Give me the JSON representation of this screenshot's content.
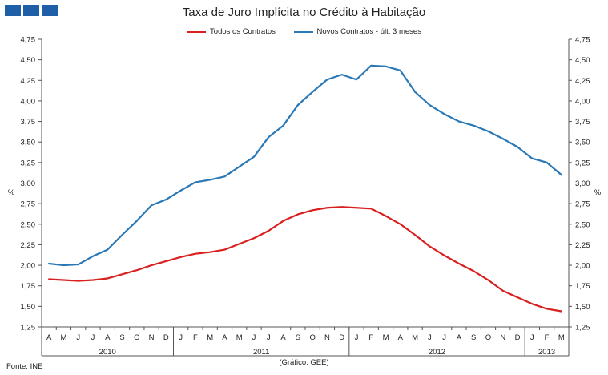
{
  "title": "Taxa de Juro Implícita no Crédito à Habitação",
  "source": "Fonte: INE",
  "credit": "(Gráfico: GEE)",
  "colors": {
    "series1": "#d9201f",
    "series2": "#2a78b5",
    "logo": "#1f5fa8"
  },
  "chart_data": {
    "type": "line",
    "ylabel": "%",
    "y2label": "%",
    "ylim": [
      1.25,
      4.75
    ],
    "yticks": [
      1.25,
      1.5,
      1.75,
      2.0,
      2.25,
      2.5,
      2.75,
      3.0,
      3.25,
      3.5,
      3.75,
      4.0,
      4.25,
      4.5,
      4.75
    ],
    "grid": false,
    "legend": "top-center",
    "months": [
      "A",
      "M",
      "J",
      "J",
      "A",
      "S",
      "O",
      "N",
      "D",
      "J",
      "F",
      "M",
      "A",
      "M",
      "J",
      "J",
      "A",
      "S",
      "O",
      "N",
      "D",
      "J",
      "F",
      "M",
      "A",
      "M",
      "J",
      "J",
      "A",
      "S",
      "O",
      "N",
      "D",
      "J",
      "F",
      "M"
    ],
    "years": [
      {
        "label": "2010",
        "span": 9
      },
      {
        "label": "2011",
        "span": 12
      },
      {
        "label": "2012",
        "span": 12
      },
      {
        "label": "2013",
        "span": 3
      }
    ],
    "series": [
      {
        "name": "Todos os Contratos",
        "color": "#d9201f",
        "values": [
          1.83,
          1.82,
          1.81,
          1.82,
          1.84,
          1.89,
          1.94,
          2.0,
          2.05,
          2.1,
          2.14,
          2.16,
          2.19,
          2.26,
          2.33,
          2.42,
          2.54,
          2.62,
          2.67,
          2.7,
          2.71,
          2.7,
          2.69,
          2.6,
          2.5,
          2.37,
          2.23,
          2.12,
          2.02,
          1.93,
          1.82,
          1.69,
          1.61,
          1.53,
          1.47,
          1.44
        ]
      },
      {
        "name": "Novos Contratos - últ. 3 meses",
        "color": "#2a78b5",
        "values": [
          2.02,
          2.0,
          2.01,
          2.11,
          2.19,
          2.37,
          2.54,
          2.73,
          2.8,
          2.91,
          3.01,
          3.04,
          3.08,
          3.2,
          3.32,
          3.56,
          3.7,
          3.95,
          4.11,
          4.26,
          4.32,
          4.26,
          4.43,
          4.42,
          4.37,
          4.11,
          3.95,
          3.84,
          3.75,
          3.7,
          3.63,
          3.54,
          3.44,
          3.3,
          3.25,
          3.1
        ]
      }
    ]
  }
}
